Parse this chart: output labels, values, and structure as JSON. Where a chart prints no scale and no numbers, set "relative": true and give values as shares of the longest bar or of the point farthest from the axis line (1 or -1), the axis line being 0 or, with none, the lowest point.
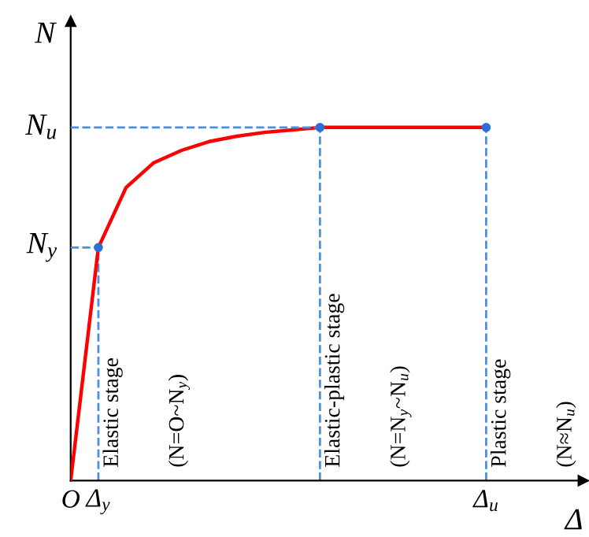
{
  "chart_data": {
    "type": "line",
    "relative": true,
    "xlabel": "Δ",
    "ylabel": "N",
    "categories": [
      "O",
      "Δ$_{y}$",
      null,
      null,
      null,
      null,
      null,
      null,
      null,
      null,
      null,
      null,
      null,
      null,
      null,
      "Δ$_{u}$",
      null,
      null,
      null
    ],
    "series": [
      {
        "color": "#ff0000",
        "values": [
          0,
          0.66,
          0.83,
          0.9,
          0.935,
          0.96,
          0.975,
          0.986,
          0.993,
          1,
          1,
          1,
          1,
          1,
          1,
          1,
          null,
          null,
          null
        ]
      },
      {
        "type": "scatter",
        "color": "#2a6fd6",
        "marker": "circle",
        "values": [
          null,
          0.66,
          null,
          null,
          null,
          null,
          null,
          null,
          null,
          1,
          null,
          null,
          null,
          null,
          null,
          1,
          null,
          null,
          null
        ]
      }
    ],
    "ref_lines": [
      {
        "axis": "y",
        "value": 0.66,
        "label": "N$_{y}$",
        "color": "#4a90e2",
        "line_style": "dashed"
      },
      {
        "axis": "y",
        "value": 1,
        "label": "N$_{u}$",
        "color": "#4a90e2",
        "line_style": "dashed"
      }
    ],
    "annotations": [
      "Elastic stage",
      "(N=O~N$_{y}$)",
      "Elastic-plastic stage",
      "(N=N$_{y}$~N$_{u}$)",
      "Plastic stage",
      "(N≈N$_{u}$)"
    ]
  }
}
